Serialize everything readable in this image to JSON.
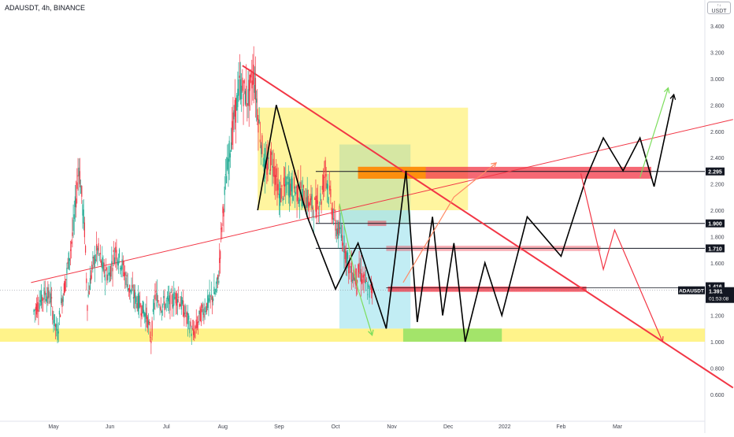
{
  "header": {
    "symbol_title": "ADAUSDT, 4h, BINANCE",
    "currency_badge": "USDT"
  },
  "chart_data": {
    "type": "line",
    "title": "ADAUSDT, 4h, BINANCE",
    "x_axis": {
      "unit": "months, 2021-2022",
      "tick_labels": [
        "May",
        "Jun",
        "Jul",
        "Aug",
        "Sep",
        "Oct",
        "Nov",
        "Dec",
        "2022",
        "Feb",
        "Mar"
      ]
    },
    "y_axis": {
      "ticks": [
        "0.600",
        "0.800",
        "1.000",
        "1.200",
        "1.400",
        "1.600",
        "1.800",
        "2.000",
        "2.200",
        "2.400",
        "2.600",
        "2.800",
        "3.000",
        "3.200",
        "3.400"
      ],
      "range": [
        0.5,
        3.6
      ]
    },
    "price_series": {
      "name": "",
      "color": "#22ab94",
      "down_color": "#f23645",
      "approx_path_month_price": [
        [
          -0.35,
          1.23
        ],
        [
          -0.25,
          1.3
        ],
        [
          -0.15,
          1.37
        ],
        [
          -0.05,
          1.33
        ],
        [
          0.0,
          1.18
        ],
        [
          0.07,
          1.06
        ],
        [
          0.12,
          1.25
        ],
        [
          0.22,
          1.48
        ],
        [
          0.35,
          1.85
        ],
        [
          0.45,
          2.35
        ],
        [
          0.55,
          1.85
        ],
        [
          0.6,
          1.3
        ],
        [
          0.68,
          1.55
        ],
        [
          0.78,
          1.7
        ],
        [
          0.88,
          1.55
        ],
        [
          0.98,
          1.5
        ],
        [
          1.1,
          1.7
        ],
        [
          1.2,
          1.6
        ],
        [
          1.35,
          1.4
        ],
        [
          1.5,
          1.3
        ],
        [
          1.65,
          1.2
        ],
        [
          1.73,
          1.02
        ],
        [
          1.8,
          1.35
        ],
        [
          1.92,
          1.28
        ],
        [
          2.05,
          1.3
        ],
        [
          2.2,
          1.35
        ],
        [
          2.35,
          1.2
        ],
        [
          2.48,
          1.05
        ],
        [
          2.6,
          1.2
        ],
        [
          2.75,
          1.3
        ],
        [
          2.88,
          1.38
        ],
        [
          2.93,
          1.5
        ],
        [
          2.97,
          1.8
        ],
        [
          3.05,
          2.2
        ],
        [
          3.15,
          2.55
        ],
        [
          3.3,
          2.95
        ],
        [
          3.45,
          2.85
        ],
        [
          3.55,
          3.05
        ],
        [
          3.63,
          2.7
        ],
        [
          3.75,
          2.3
        ],
        [
          3.88,
          2.4
        ],
        [
          4.0,
          2.1
        ],
        [
          4.15,
          2.2
        ],
        [
          4.3,
          2.15
        ],
        [
          4.45,
          2.1
        ],
        [
          4.55,
          2.05
        ],
        [
          4.65,
          2.02
        ],
        [
          4.75,
          2.1
        ],
        [
          4.82,
          2.32
        ],
        [
          4.88,
          2.15
        ],
        [
          5.0,
          1.88
        ],
        [
          5.12,
          1.8
        ],
        [
          5.25,
          1.55
        ],
        [
          5.35,
          1.48
        ],
        [
          5.42,
          1.53
        ],
        [
          5.52,
          1.45
        ],
        [
          5.6,
          1.38
        ],
        [
          5.67,
          1.41
        ]
      ]
    },
    "horizontal_levels": [
      {
        "price_label": "1.900",
        "value": 1.9
      },
      {
        "price_label": "1.710",
        "value": 1.71
      },
      {
        "price_label": "2.295",
        "value": 2.295
      }
    ],
    "dotted_level": {
      "value": 1.391
    },
    "price_tags": [
      {
        "text": "1.416",
        "value": 1.416
      },
      {
        "text": "ADAUSDT",
        "value": 1.391
      },
      {
        "text": "1.391",
        "value": 1.391
      },
      {
        "text": "01:53:08",
        "value": 1.391
      }
    ],
    "support_zone": {
      "from": 1.0,
      "to": 1.1,
      "color": "#fff176"
    },
    "zones": [
      {
        "type": "rect",
        "x0_month": 3.62,
        "x1_month": 7.35,
        "y0": 2.0,
        "y1": 2.78,
        "color": "#fff176"
      },
      {
        "type": "rect",
        "x0_month": 5.07,
        "x1_month": 6.33,
        "y0": 1.9,
        "y1": 2.5,
        "color": "#c5e1a5"
      },
      {
        "type": "rect",
        "x0_month": 5.07,
        "x1_month": 6.33,
        "y0": 1.1,
        "y1": 2.0,
        "color": "#a8e6f0"
      },
      {
        "type": "rect",
        "x0_month": 6.2,
        "x1_month": 7.95,
        "y0": 1.0,
        "y1": 1.1,
        "color": "#7cdd5c"
      },
      {
        "type": "rect",
        "x0_month": 5.4,
        "x1_month": 10.6,
        "y0": 2.24,
        "y1": 2.33,
        "color": "#f23645",
        "opacity": 0.75
      },
      {
        "type": "rect",
        "x0_month": 5.4,
        "x1_month": 6.6,
        "y0": 2.24,
        "y1": 2.33,
        "color": "#ff9800",
        "opacity": 0.85
      },
      {
        "type": "rect",
        "x0_month": 5.57,
        "x1_month": 5.9,
        "y0": 1.88,
        "y1": 1.92,
        "color": "#f23645",
        "opacity": 0.5
      },
      {
        "type": "rect",
        "x0_month": 5.9,
        "x1_month": 9.7,
        "y0": 1.69,
        "y1": 1.73,
        "color": "#f23645",
        "opacity": 0.4
      },
      {
        "type": "rect",
        "x0_month": 5.93,
        "x1_month": 9.45,
        "y0": 1.38,
        "y1": 1.42,
        "color": "#f23645",
        "opacity": 0.8
      }
    ],
    "trend_lines": [
      {
        "name": "",
        "color": "#f23645",
        "from_month": 3.35,
        "from_price": 3.1,
        "to_month": 12.05,
        "to_price": 0.65
      },
      {
        "name": "",
        "color": "#f23645",
        "from_month": -0.4,
        "from_price": 1.45,
        "to_month": 12.05,
        "to_price": 2.69,
        "thin": true
      }
    ],
    "projection_paths": [
      {
        "color": "#000000",
        "points": [
          [
            3.62,
            2.0
          ],
          [
            3.95,
            2.8
          ],
          [
            4.5,
            1.95
          ],
          [
            5.0,
            1.4
          ],
          [
            5.4,
            1.75
          ],
          [
            5.9,
            1.1
          ],
          [
            6.25,
            2.3
          ],
          [
            6.45,
            1.15
          ],
          [
            6.72,
            1.95
          ],
          [
            6.9,
            1.2
          ],
          [
            7.1,
            1.75
          ],
          [
            7.3,
            1.0
          ],
          [
            7.65,
            1.6
          ],
          [
            7.95,
            1.2
          ],
          [
            8.4,
            1.95
          ],
          [
            9.0,
            1.65
          ],
          [
            9.45,
            2.25
          ],
          [
            9.75,
            2.55
          ],
          [
            10.1,
            2.3
          ],
          [
            10.4,
            2.55
          ],
          [
            10.65,
            2.18
          ],
          [
            11.0,
            2.88
          ]
        ]
      },
      {
        "color": "#7cdd5c",
        "points": [
          [
            5.07,
            2.05
          ],
          [
            5.4,
            1.4
          ],
          [
            5.65,
            1.05
          ]
        ]
      },
      {
        "color": "#7cdd5c",
        "points": [
          [
            10.4,
            2.25
          ],
          [
            10.9,
            2.93
          ]
        ]
      },
      {
        "color": "#f23645",
        "points": [
          [
            9.35,
            2.28
          ],
          [
            9.75,
            1.55
          ],
          [
            9.95,
            1.85
          ],
          [
            10.8,
            1.0
          ]
        ]
      },
      {
        "color": "#ff8a65",
        "points": [
          [
            6.2,
            1.45
          ],
          [
            7.1,
            2.1
          ],
          [
            7.85,
            2.36
          ]
        ]
      }
    ]
  }
}
